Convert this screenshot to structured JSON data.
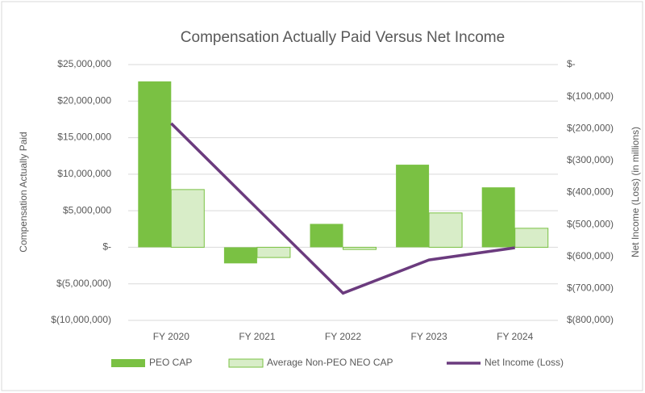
{
  "chart_data": {
    "type": "bar_line",
    "title": "Compensation Actually Paid Versus Net Income",
    "y_label": "Compensation Actually Paid",
    "y2_label": "Net Income (Loss) (in millions)",
    "categories": [
      "FY 2020",
      "FY 2021",
      "FY 2022",
      "FY 2023",
      "FY 2024"
    ],
    "series": [
      {
        "name": "PEO CAP",
        "color": "#7ac143",
        "type": "bar",
        "values": [
          22700000,
          -2200000,
          3200000,
          11300000,
          8200000
        ]
      },
      {
        "name": "Average Non-PEO NEO CAP",
        "color": "#d8edc8",
        "stroke": "#7ac143",
        "type": "bar",
        "values": [
          7900000,
          -1400000,
          -300000,
          4700000,
          2600000
        ]
      },
      {
        "name": "Net Income (Loss)",
        "color": "#6b3b7e",
        "type": "line",
        "axis": "y2",
        "values": [
          -184000,
          -450000,
          -715000,
          -611000,
          -573000
        ]
      }
    ],
    "ylim": [
      -10000000,
      25000000
    ],
    "yticks": [
      {
        "value": -10000000,
        "label": "$(10,000,000)"
      },
      {
        "value": -5000000,
        "label": "$(5,000,000)"
      },
      {
        "value": 0,
        "label": "$-"
      },
      {
        "value": 5000000,
        "label": "$5,000,000"
      },
      {
        "value": 10000000,
        "label": "$10,000,000"
      },
      {
        "value": 15000000,
        "label": "$15,000,000"
      },
      {
        "value": 20000000,
        "label": "$20,000,000"
      },
      {
        "value": 25000000,
        "label": "$25,000,000"
      }
    ],
    "y2lim": [
      -800000,
      0
    ],
    "y2ticks": [
      {
        "value": -800000,
        "label": "$(800,000)"
      },
      {
        "value": -700000,
        "label": "$(700,000)"
      },
      {
        "value": -600000,
        "label": "$(600,000)"
      },
      {
        "value": -500000,
        "label": "$(500,000)"
      },
      {
        "value": -400000,
        "label": "$(400,000)"
      },
      {
        "value": -300000,
        "label": "$(300,000)"
      },
      {
        "value": -200000,
        "label": "$(200,000)"
      },
      {
        "value": -100000,
        "label": "$(100,000)"
      },
      {
        "value": 0,
        "label": "$-"
      }
    ],
    "grid": true,
    "legend": "bottom"
  }
}
